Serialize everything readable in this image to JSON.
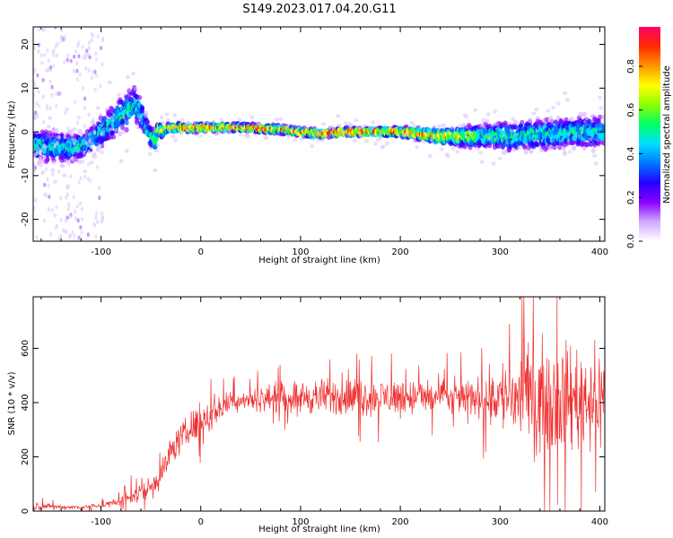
{
  "figure_title": "S149.2023.017.04.20.G11",
  "chart_data": [
    {
      "type": "heatmap",
      "title": "",
      "xlabel": "Height of straight line (km)",
      "ylabel": "Frequency (Hz)",
      "xlim": [
        -168,
        405
      ],
      "ylim": [
        -25,
        24
      ],
      "xticks": [
        -100,
        0,
        100,
        200,
        300,
        400
      ],
      "yticks": [
        -20,
        -10,
        0,
        10,
        20
      ],
      "colorbar": {
        "label": "Normalized spectral amplitude",
        "ticks": [
          "0.0",
          "0.2",
          "0.4",
          "0.6",
          "0.8"
        ],
        "tick_values": [
          0.0,
          0.2,
          0.4,
          0.6,
          0.8
        ],
        "range": [
          0,
          0.98
        ],
        "colormap": [
          "#ffffff",
          "#cfa9ff",
          "#8a00ff",
          "#2400ff",
          "#0078ff",
          "#00e0ff",
          "#00ff66",
          "#8cff00",
          "#ffff00",
          "#ff9600",
          "#ff2a00",
          "#ff0068"
        ]
      },
      "center_track": {
        "x": [
          -168,
          -150,
          -130,
          -115,
          -105,
          -95,
          -85,
          -75,
          -68,
          -62,
          -58,
          -54,
          -50,
          -46,
          -42,
          -38,
          -34,
          -28,
          -20,
          -10,
          0,
          20,
          40,
          60,
          80,
          100,
          120,
          140,
          160,
          180,
          200,
          220,
          240,
          260,
          280,
          300,
          320,
          340,
          360,
          380,
          405
        ],
        "y": [
          -3,
          -3.5,
          -3.5,
          -3,
          -1,
          1,
          3,
          4.5,
          6,
          5,
          3,
          0.5,
          -1,
          -2,
          1,
          0,
          1,
          0.8,
          1,
          0.8,
          1,
          1,
          1,
          0.8,
          0.5,
          0,
          -0.5,
          0,
          0,
          0,
          0,
          -0.5,
          -1,
          -1,
          -1,
          -1,
          -1,
          -0.5,
          -0.5,
          0,
          0
        ],
        "spread_hz": [
          4,
          4,
          3.5,
          3.5,
          4,
          4,
          4.5,
          5,
          5,
          5,
          4,
          3,
          3,
          3,
          2,
          1.5,
          1,
          1,
          1,
          1,
          1,
          1,
          1,
          1,
          1,
          1,
          1,
          1,
          1,
          1,
          1.2,
          1.5,
          2,
          2.5,
          3,
          3.5,
          4,
          4,
          4,
          4,
          4
        ],
        "peak_amplitude": [
          0.5,
          0.5,
          0.5,
          0.5,
          0.5,
          0.5,
          0.5,
          0.5,
          0.5,
          0.45,
          0.45,
          0.5,
          0.5,
          0.6,
          0.7,
          0.8,
          0.8,
          0.9,
          0.9,
          0.95,
          0.95,
          0.9,
          0.85,
          0.9,
          0.9,
          0.9,
          0.9,
          0.95,
          0.95,
          0.95,
          0.9,
          0.85,
          0.8,
          0.7,
          0.6,
          0.55,
          0.5,
          0.5,
          0.5,
          0.5,
          0.5
        ]
      }
    },
    {
      "type": "line",
      "title": "",
      "xlabel": "Height of straight line (km)",
      "ylabel": "SNR (10 * v/v)",
      "xlim": [
        -168,
        405
      ],
      "ylim": [
        0,
        790
      ],
      "xticks": [
        -100,
        0,
        100,
        200,
        300,
        400
      ],
      "yticks": [
        0,
        200,
        400,
        600
      ],
      "color": "#f03030",
      "envelope": {
        "x": [
          -168,
          -140,
          -120,
          -100,
          -80,
          -70,
          -60,
          -50,
          -40,
          -30,
          -20,
          -10,
          0,
          10,
          20,
          30,
          40,
          60,
          80,
          100,
          150,
          200,
          250,
          280,
          300,
          320,
          340,
          360,
          380,
          405
        ],
        "mean": [
          20,
          15,
          15,
          20,
          35,
          55,
          70,
          90,
          130,
          220,
          270,
          300,
          330,
          360,
          380,
          400,
          410,
          415,
          420,
          420,
          420,
          420,
          420,
          420,
          425,
          420,
          420,
          420,
          420,
          420
        ],
        "amplitude": [
          15,
          10,
          10,
          12,
          20,
          40,
          50,
          60,
          60,
          60,
          60,
          70,
          80,
          80,
          60,
          50,
          40,
          50,
          60,
          70,
          80,
          80,
          70,
          80,
          150,
          200,
          220,
          230,
          220,
          200
        ]
      }
    }
  ]
}
